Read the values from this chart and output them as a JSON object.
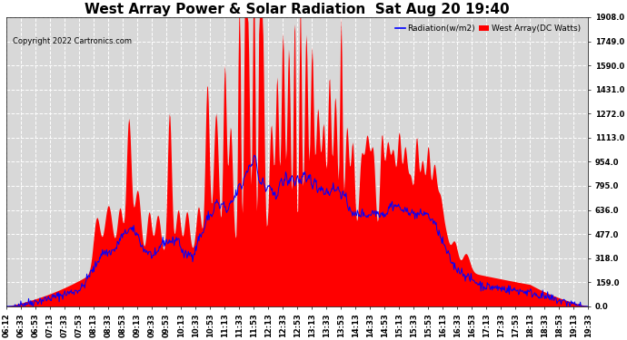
{
  "title": "West Array Power & Solar Radiation  Sat Aug 20 19:40",
  "copyright_text": "Copyright 2022 Cartronics.com",
  "legend_radiation": "Radiation(w/m2)",
  "legend_west_array": "West Array(DC Watts)",
  "legend_radiation_color": "blue",
  "legend_west_array_color": "red",
  "ymin": 0.0,
  "ymax": 1908.0,
  "yticks": [
    0.0,
    159.0,
    318.0,
    477.0,
    636.0,
    795.0,
    954.0,
    1113.0,
    1272.0,
    1431.0,
    1590.0,
    1749.0,
    1908.0
  ],
  "background_color": "#ffffff",
  "plot_background": "#d8d8d8",
  "grid_color": "#ffffff",
  "fill_color": "red",
  "line_color": "blue",
  "title_fontsize": 11,
  "tick_fontsize": 6,
  "x_tick_labels": [
    "06:12",
    "06:33",
    "06:53",
    "07:13",
    "07:33",
    "07:53",
    "08:13",
    "08:33",
    "08:53",
    "09:13",
    "09:33",
    "09:53",
    "10:13",
    "10:33",
    "10:53",
    "11:13",
    "11:33",
    "11:53",
    "12:13",
    "12:33",
    "12:53",
    "13:13",
    "13:33",
    "13:53",
    "14:13",
    "14:33",
    "14:53",
    "15:13",
    "15:33",
    "15:53",
    "16:13",
    "16:33",
    "16:53",
    "17:13",
    "17:33",
    "17:53",
    "18:13",
    "18:33",
    "18:53",
    "19:13",
    "19:33"
  ]
}
